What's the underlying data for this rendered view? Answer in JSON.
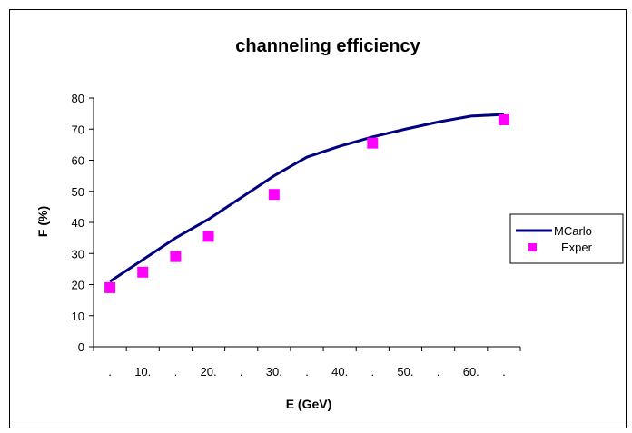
{
  "chart_data": {
    "type": "line",
    "title": "channeling efficiency",
    "xlabel": "E (GeV)",
    "ylabel": "F (%)",
    "ylim": [
      0,
      80
    ],
    "yticks": [
      "0",
      "10",
      "20",
      "30",
      "40",
      "50",
      "60",
      "70",
      "80"
    ],
    "categories": [
      ".",
      "10.",
      ".",
      "20.",
      ".",
      "30.",
      ".",
      "40.",
      ".",
      "50.",
      ".",
      "60.",
      "."
    ],
    "grid": false,
    "legend_position": "right",
    "series": [
      {
        "name": "MCarlo",
        "style": "line",
        "color": "#000080",
        "points": [
          {
            "x": 0.0,
            "y": 21
          },
          {
            "x": 1.0,
            "y": 28
          },
          {
            "x": 2.0,
            "y": 35
          },
          {
            "x": 3.0,
            "y": 41
          },
          {
            "x": 4.0,
            "y": 48
          },
          {
            "x": 5.0,
            "y": 55
          },
          {
            "x": 6.0,
            "y": 61
          },
          {
            "x": 7.0,
            "y": 64.5
          },
          {
            "x": 8.0,
            "y": 67.5
          },
          {
            "x": 9.0,
            "y": 70
          },
          {
            "x": 10.0,
            "y": 72.3
          },
          {
            "x": 11.0,
            "y": 74.2
          },
          {
            "x": 12.0,
            "y": 74.7
          }
        ]
      },
      {
        "name": "Exper",
        "style": "marker",
        "color": "#ff00ff",
        "points": [
          {
            "x": 0.0,
            "y": 19
          },
          {
            "x": 1.0,
            "y": 24
          },
          {
            "x": 2.0,
            "y": 29
          },
          {
            "x": 3.0,
            "y": 35.5
          },
          {
            "x": 5.0,
            "y": 49
          },
          {
            "x": 8.0,
            "y": 65.5
          },
          {
            "x": 12.0,
            "y": 73
          }
        ]
      }
    ]
  }
}
